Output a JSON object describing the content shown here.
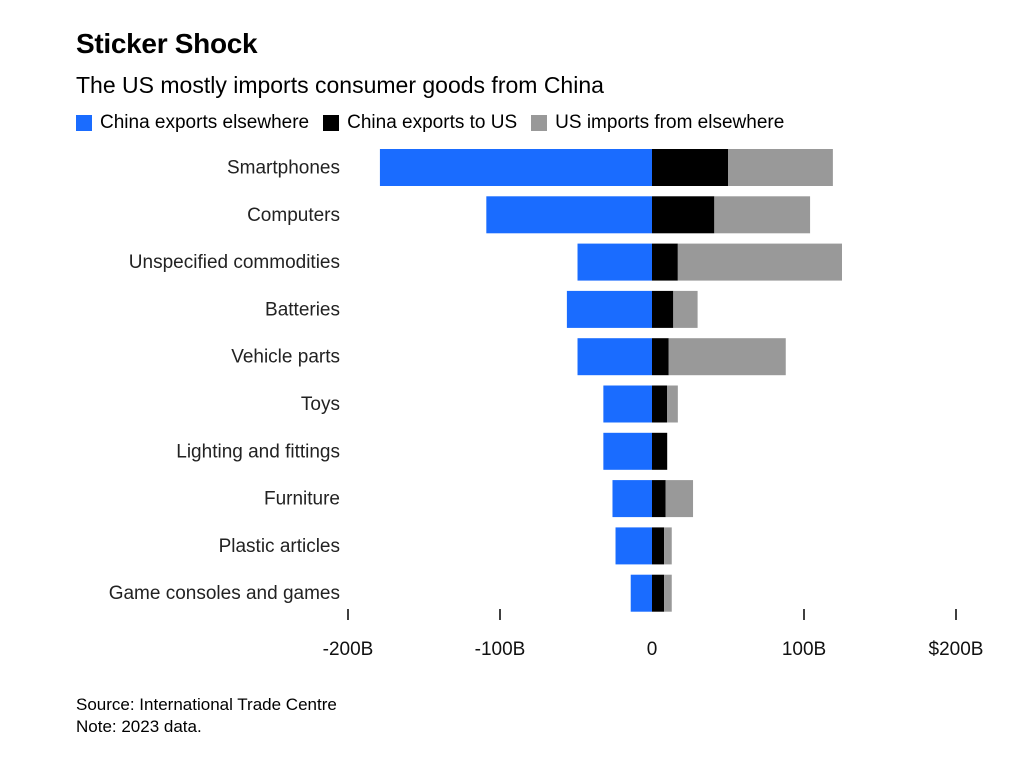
{
  "header": {
    "title": "Sticker Shock",
    "subtitle": "The US mostly imports consumer goods from China"
  },
  "legend": [
    {
      "label": "China exports elsewhere",
      "color": "#1a6cff"
    },
    {
      "label": "China exports to US",
      "color": "#000000"
    },
    {
      "label": "US imports from elsewhere",
      "color": "#999999"
    }
  ],
  "footer": {
    "source": "Source: International Trade Centre",
    "note": "Note: 2023 data."
  },
  "chart_data": {
    "type": "bar",
    "orientation": "horizontal",
    "stacked": "diverging",
    "categories": [
      "Smartphones",
      "Computers",
      "Unspecified commodities",
      "Batteries",
      "Vehicle parts",
      "Toys",
      "Lighting and fittings",
      "Furniture",
      "Plastic articles",
      "Game consoles and games"
    ],
    "series": [
      {
        "name": "China exports elsewhere",
        "color": "#1a6cff",
        "values": [
          -179,
          -109,
          -49,
          -56,
          -49,
          -32,
          -32,
          -26,
          -24,
          -14
        ]
      },
      {
        "name": "China exports to US",
        "color": "#000000",
        "values": [
          50,
          41,
          17,
          14,
          11,
          10,
          10,
          9,
          8,
          8
        ]
      },
      {
        "name": "US imports from elsewhere",
        "color": "#999999",
        "values": [
          69,
          63,
          108,
          16,
          77,
          7,
          0,
          18,
          5,
          5
        ]
      }
    ],
    "xlim": [
      -200,
      200
    ],
    "xticks": [
      {
        "value": -200,
        "label": "-200B"
      },
      {
        "value": -100,
        "label": "-100B"
      },
      {
        "value": 0,
        "label": "0"
      },
      {
        "value": 100,
        "label": "100B"
      },
      {
        "value": 200,
        "label": "$200B"
      }
    ],
    "legend_position": "top-left",
    "grid": false
  }
}
